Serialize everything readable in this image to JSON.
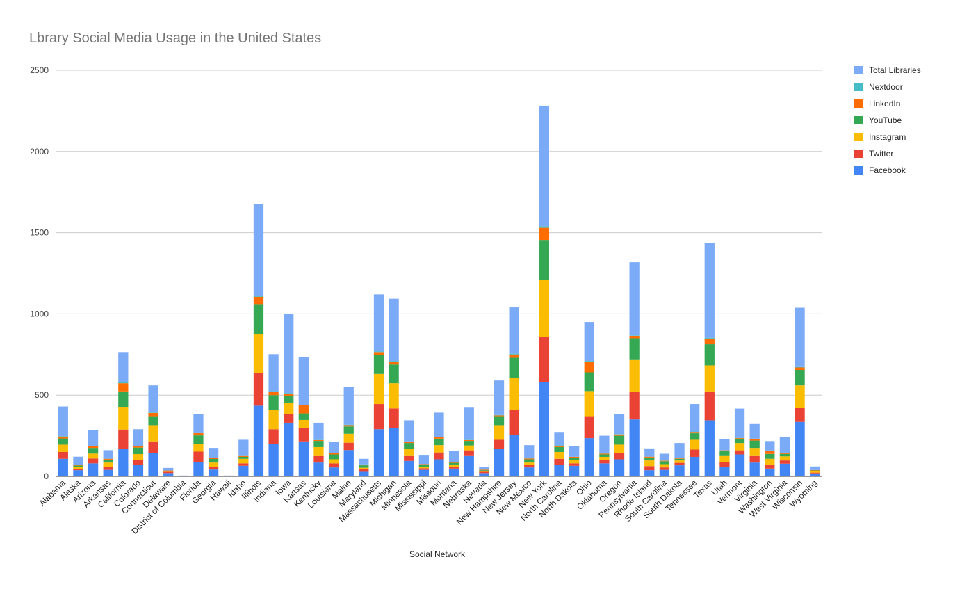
{
  "chart_data": {
    "type": "bar",
    "stacked": true,
    "title": "Lbrary Social Media Usage in the United States",
    "xlabel": "Social Network",
    "ylabel": "",
    "ylim": [
      0,
      2500
    ],
    "yticks": [
      0,
      500,
      1000,
      1500,
      2000,
      2500
    ],
    "grid": true,
    "legend_position": "right",
    "categories": [
      "Alabama",
      "Alaska",
      "Arizona",
      "Arkansas",
      "California",
      "Colorado",
      "Connecticut",
      "Delaware",
      "District of Columbia",
      "Florida",
      "Georgia",
      "Hawaii",
      "Idaho",
      "Illinois",
      "Indiana",
      "Iowa",
      "Kansas",
      "Kentucky",
      "Louisiana",
      "Maine",
      "Maryland",
      "Massachusetts",
      "Michigan",
      "Minnesota",
      "Mississippi",
      "Missouri",
      "Montana",
      "Nebraska",
      "Nevada",
      "New Hampshire",
      "New Jersey",
      "New Mexico",
      "New York",
      "North Carolina",
      "North Dakota",
      "Ohio",
      "Oklahoma",
      "Oregon",
      "Pennsylvania",
      "Rhode Island",
      "South Carolina",
      "South Dakota",
      "Tennessee",
      "Texas",
      "Utah",
      "Vermont",
      "Virginia",
      "Washington",
      "West Virginia",
      "Wisconsin",
      "Wyoming"
    ],
    "series": [
      {
        "name": "Facebook",
        "color": "#4285f4",
        "values": [
          108,
          38,
          80,
          40,
          168,
          72,
          145,
          20,
          3,
          90,
          42,
          3,
          65,
          435,
          200,
          330,
          215,
          85,
          55,
          162,
          28,
          290,
          298,
          95,
          40,
          105,
          48,
          125,
          20,
          170,
          255,
          55,
          580,
          70,
          65,
          235,
          80,
          105,
          350,
          38,
          40,
          68,
          120,
          345,
          60,
          135,
          85,
          48,
          78,
          335,
          18
        ]
      },
      {
        "name": "Twitter",
        "color": "#ea4335",
        "values": [
          42,
          8,
          30,
          20,
          120,
          27,
          70,
          8,
          0,
          62,
          18,
          0,
          15,
          200,
          90,
          52,
          82,
          40,
          25,
          45,
          15,
          155,
          120,
          30,
          10,
          42,
          10,
          35,
          8,
          55,
          155,
          15,
          280,
          38,
          15,
          135,
          20,
          40,
          170,
          25,
          15,
          15,
          45,
          178,
          30,
          25,
          40,
          25,
          20,
          85,
          5
        ]
      },
      {
        "name": "Instagram",
        "color": "#fbbc04",
        "values": [
          45,
          10,
          30,
          25,
          140,
          38,
          100,
          3,
          0,
          45,
          25,
          0,
          28,
          240,
          120,
          72,
          50,
          55,
          25,
          55,
          10,
          185,
          155,
          42,
          10,
          45,
          15,
          30,
          5,
          90,
          195,
          15,
          350,
          42,
          20,
          155,
          20,
          50,
          200,
          35,
          20,
          15,
          60,
          160,
          35,
          45,
          50,
          35,
          25,
          140,
          8
        ]
      },
      {
        "name": "YouTube",
        "color": "#34a853",
        "values": [
          38,
          10,
          35,
          18,
          95,
          40,
          55,
          3,
          0,
          55,
          22,
          0,
          12,
          185,
          90,
          40,
          40,
          38,
          30,
          45,
          15,
          115,
          115,
          38,
          12,
          40,
          10,
          28,
          5,
          55,
          125,
          20,
          245,
          30,
          15,
          115,
          15,
          55,
          130,
          18,
          18,
          10,
          40,
          130,
          30,
          25,
          45,
          30,
          15,
          95,
          5
        ]
      },
      {
        "name": "LinkedIn",
        "color": "#ff6d01",
        "values": [
          12,
          4,
          10,
          5,
          50,
          8,
          20,
          2,
          0,
          15,
          6,
          0,
          5,
          45,
          22,
          15,
          50,
          5,
          8,
          8,
          5,
          20,
          18,
          8,
          3,
          10,
          5,
          5,
          3,
          5,
          20,
          5,
          75,
          8,
          5,
          65,
          5,
          8,
          15,
          5,
          3,
          3,
          8,
          35,
          5,
          5,
          10,
          20,
          5,
          15,
          3
        ]
      },
      {
        "name": "Nextdoor",
        "color": "#46bdc6",
        "values": [
          3,
          1,
          2,
          1,
          5,
          2,
          3,
          0,
          0,
          3,
          1,
          0,
          1,
          5,
          3,
          4,
          3,
          2,
          1,
          3,
          1,
          5,
          4,
          2,
          1,
          2,
          1,
          2,
          1,
          3,
          5,
          1,
          10,
          3,
          1,
          5,
          2,
          2,
          3,
          1,
          1,
          1,
          3,
          5,
          1,
          2,
          2,
          1,
          1,
          3,
          0
        ]
      },
      {
        "name": "Total Libraries",
        "color": "#7baaf7",
        "values": [
          182,
          50,
          97,
          52,
          187,
          103,
          167,
          16,
          2,
          112,
          61,
          2,
          99,
          565,
          227,
          487,
          292,
          105,
          66,
          232,
          34,
          350,
          383,
          130,
          52,
          148,
          69,
          202,
          17,
          212,
          285,
          81,
          742,
          82,
          63,
          240,
          108,
          125,
          450,
          50,
          42,
          93,
          169,
          584,
          68,
          180,
          90,
          58,
          96,
          365,
          22
        ]
      }
    ]
  }
}
